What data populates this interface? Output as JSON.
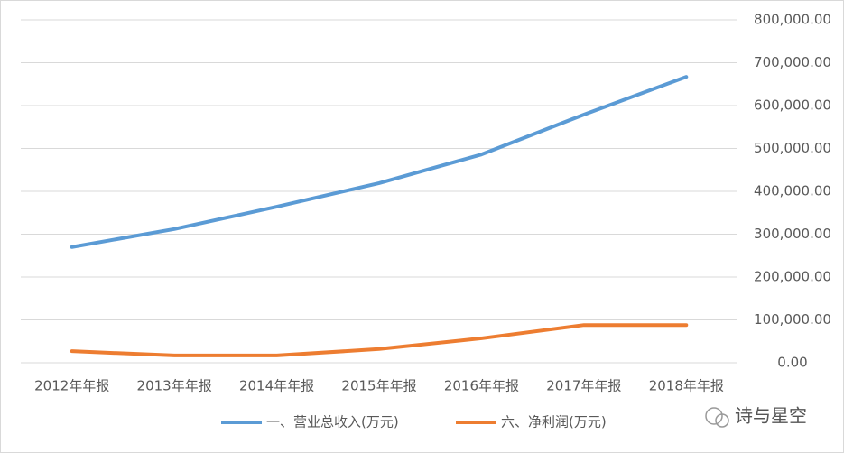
{
  "chart_data": {
    "type": "line",
    "categories": [
      "2012年年报",
      "2013年年报",
      "2014年年报",
      "2015年年报",
      "2016年年报",
      "2017年年报",
      "2018年年报"
    ],
    "series": [
      {
        "name": "一、营业总收入(万元)",
        "color": "#5b9bd5",
        "values": [
          270000,
          312000,
          364000,
          419000,
          486000,
          579000,
          667000
        ]
      },
      {
        "name": "六、净利润(万元)",
        "color": "#ed7d31",
        "values": [
          27000,
          17000,
          17000,
          32000,
          57000,
          88000,
          88000
        ]
      }
    ],
    "ylim": [
      0,
      800000
    ],
    "yticks": [
      {
        "value": 0,
        "label": "0.00"
      },
      {
        "value": 100000,
        "label": "100,000.00"
      },
      {
        "value": 200000,
        "label": "200,000.00"
      },
      {
        "value": 300000,
        "label": "300,000.00"
      },
      {
        "value": 400000,
        "label": "400,000.00"
      },
      {
        "value": 500000,
        "label": "500,000.00"
      },
      {
        "value": 600000,
        "label": "600,000.00"
      },
      {
        "value": 700000,
        "label": "700,000.00"
      },
      {
        "value": 800000,
        "label": "800,000.00"
      }
    ],
    "grid": true,
    "legend": "bottom",
    "watermark": "诗与星空"
  }
}
